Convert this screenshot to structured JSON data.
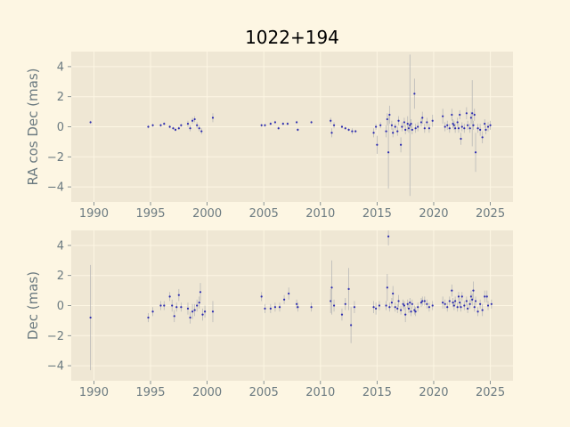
{
  "figure": {
    "title": "1022+194",
    "background": "#fdf6e3",
    "panel_background": "#efe7d4",
    "grid_color": "#fdf6e3",
    "tick_color": "#6b7a80",
    "label_color": "#6b7a80",
    "point_color": "#2b2bb0",
    "errorbar_color": "#b8b8b8"
  },
  "chart_data": [
    {
      "type": "scatter",
      "ylabel": "RA cos Dec (mas)",
      "xlim": [
        1988,
        2027
      ],
      "ylim": [
        -5,
        5
      ],
      "xticks": [
        1990,
        1995,
        2000,
        2005,
        2010,
        2015,
        2020,
        2025
      ],
      "yticks": [
        -4,
        -2,
        0,
        2,
        4
      ],
      "grid": true,
      "points": [
        [
          1989.7,
          0.3,
          0.1
        ],
        [
          1994.8,
          0.0,
          0.1
        ],
        [
          1995.2,
          0.1,
          0.1
        ],
        [
          1995.9,
          0.1,
          0.1
        ],
        [
          1996.2,
          0.2,
          0.1
        ],
        [
          1996.7,
          0.0,
          0.1
        ],
        [
          1997.0,
          -0.1,
          0.1
        ],
        [
          1997.2,
          -0.2,
          0.1
        ],
        [
          1997.5,
          -0.1,
          0.1
        ],
        [
          1997.7,
          0.1,
          0.1
        ],
        [
          1998.3,
          0.2,
          0.2
        ],
        [
          1998.5,
          -0.1,
          0.2
        ],
        [
          1998.7,
          0.4,
          0.2
        ],
        [
          1998.9,
          0.5,
          0.2
        ],
        [
          1999.1,
          0.1,
          0.2
        ],
        [
          1999.3,
          -0.1,
          0.2
        ],
        [
          1999.5,
          -0.3,
          0.2
        ],
        [
          2000.5,
          0.6,
          0.3
        ],
        [
          2004.8,
          0.1,
          0.1
        ],
        [
          2005.1,
          0.1,
          0.1
        ],
        [
          2005.6,
          0.2,
          0.1
        ],
        [
          2006.0,
          0.3,
          0.1
        ],
        [
          2006.3,
          -0.1,
          0.1
        ],
        [
          2006.7,
          0.2,
          0.1
        ],
        [
          2007.1,
          0.2,
          0.1
        ],
        [
          2007.9,
          0.3,
          0.1
        ],
        [
          2008.0,
          -0.2,
          0.1
        ],
        [
          2009.2,
          0.3,
          0.1
        ],
        [
          2010.9,
          0.4,
          0.2
        ],
        [
          2011.0,
          -0.4,
          0.3
        ],
        [
          2011.2,
          0.1,
          0.2
        ],
        [
          2011.9,
          0.0,
          0.1
        ],
        [
          2012.2,
          -0.1,
          0.1
        ],
        [
          2012.5,
          -0.2,
          0.1
        ],
        [
          2012.8,
          -0.3,
          0.2
        ],
        [
          2013.1,
          -0.3,
          0.1
        ],
        [
          2014.7,
          -0.4,
          0.3
        ],
        [
          2014.9,
          0.0,
          0.2
        ],
        [
          2015.0,
          -1.2,
          0.6
        ],
        [
          2015.3,
          0.1,
          0.2
        ],
        [
          2015.8,
          -0.3,
          0.4
        ],
        [
          2015.9,
          0.5,
          0.4
        ],
        [
          2016.0,
          -1.7,
          2.4
        ],
        [
          2016.1,
          0.8,
          0.6
        ],
        [
          2016.3,
          0.1,
          0.3
        ],
        [
          2016.4,
          -0.4,
          0.3
        ],
        [
          2016.6,
          0.0,
          0.2
        ],
        [
          2016.8,
          -0.3,
          0.3
        ],
        [
          2016.9,
          0.4,
          0.3
        ],
        [
          2017.1,
          -1.2,
          0.5
        ],
        [
          2017.2,
          0.0,
          0.3
        ],
        [
          2017.4,
          0.3,
          0.3
        ],
        [
          2017.5,
          -0.2,
          0.3
        ],
        [
          2017.7,
          0.2,
          0.5
        ],
        [
          2017.8,
          -0.1,
          0.3
        ],
        [
          2017.9,
          0.1,
          4.7
        ],
        [
          2018.0,
          0.2,
          0.3
        ],
        [
          2018.1,
          -0.2,
          0.3
        ],
        [
          2018.3,
          2.2,
          1.0
        ],
        [
          2018.4,
          -0.1,
          0.3
        ],
        [
          2018.6,
          0.0,
          0.3
        ],
        [
          2018.9,
          0.3,
          0.3
        ],
        [
          2019.0,
          0.6,
          0.4
        ],
        [
          2019.2,
          -0.1,
          0.3
        ],
        [
          2019.4,
          0.3,
          0.3
        ],
        [
          2019.6,
          -0.1,
          0.3
        ],
        [
          2019.9,
          0.4,
          0.4
        ],
        [
          2020.8,
          0.7,
          0.5
        ],
        [
          2021.0,
          0.0,
          0.3
        ],
        [
          2021.2,
          0.1,
          0.3
        ],
        [
          2021.4,
          -0.1,
          0.3
        ],
        [
          2021.6,
          0.8,
          0.4
        ],
        [
          2021.7,
          0.2,
          0.3
        ],
        [
          2021.8,
          0.1,
          0.3
        ],
        [
          2021.9,
          -0.1,
          0.3
        ],
        [
          2022.1,
          0.3,
          0.3
        ],
        [
          2022.2,
          -0.1,
          0.3
        ],
        [
          2022.3,
          0.8,
          0.3
        ],
        [
          2022.4,
          -0.8,
          0.4
        ],
        [
          2022.5,
          0.0,
          0.3
        ],
        [
          2022.7,
          -0.1,
          0.3
        ],
        [
          2022.9,
          0.9,
          0.4
        ],
        [
          2023.0,
          0.1,
          0.3
        ],
        [
          2023.2,
          -0.1,
          0.3
        ],
        [
          2023.3,
          0.6,
          0.4
        ],
        [
          2023.4,
          0.9,
          2.2
        ],
        [
          2023.5,
          0.1,
          0.3
        ],
        [
          2023.6,
          0.8,
          0.4
        ],
        [
          2023.7,
          -1.7,
          1.3
        ],
        [
          2023.9,
          -0.1,
          0.3
        ],
        [
          2024.1,
          -0.2,
          0.4
        ],
        [
          2024.3,
          -0.7,
          0.4
        ],
        [
          2024.5,
          0.2,
          0.3
        ],
        [
          2024.6,
          -0.2,
          0.3
        ],
        [
          2024.8,
          0.0,
          0.3
        ],
        [
          2025.0,
          0.1,
          0.3
        ]
      ]
    },
    {
      "type": "scatter",
      "ylabel": "Dec (mas)",
      "xlim": [
        1988,
        2027
      ],
      "ylim": [
        -5,
        5
      ],
      "xticks": [
        1990,
        1995,
        2000,
        2005,
        2010,
        2015,
        2020,
        2025
      ],
      "yticks": [
        -4,
        -2,
        0,
        2,
        4
      ],
      "grid": true,
      "points": [
        [
          1989.7,
          -0.8,
          3.5
        ],
        [
          1994.8,
          -0.8,
          0.3
        ],
        [
          1995.2,
          -0.4,
          0.3
        ],
        [
          1995.9,
          0.0,
          0.3
        ],
        [
          1996.2,
          0.0,
          0.3
        ],
        [
          1996.7,
          0.6,
          0.3
        ],
        [
          1996.9,
          0.0,
          0.4
        ],
        [
          1997.1,
          -0.7,
          0.4
        ],
        [
          1997.3,
          -0.1,
          0.3
        ],
        [
          1997.5,
          0.7,
          0.4
        ],
        [
          1997.7,
          -0.1,
          0.3
        ],
        [
          1998.3,
          -0.2,
          0.4
        ],
        [
          1998.5,
          -0.8,
          0.4
        ],
        [
          1998.7,
          -0.4,
          0.5
        ],
        [
          1998.9,
          -0.3,
          0.4
        ],
        [
          1999.1,
          0.0,
          0.4
        ],
        [
          1999.3,
          0.2,
          0.4
        ],
        [
          1999.4,
          0.9,
          0.6
        ],
        [
          1999.6,
          -0.6,
          0.4
        ],
        [
          1999.8,
          -0.4,
          0.4
        ],
        [
          2000.5,
          -0.4,
          0.7
        ],
        [
          2004.8,
          0.6,
          0.3
        ],
        [
          2005.1,
          -0.2,
          0.3
        ],
        [
          2005.6,
          -0.2,
          0.3
        ],
        [
          2006.0,
          -0.1,
          0.3
        ],
        [
          2006.4,
          -0.1,
          0.3
        ],
        [
          2006.8,
          0.4,
          0.3
        ],
        [
          2007.2,
          0.8,
          0.4
        ],
        [
          2007.9,
          0.1,
          0.3
        ],
        [
          2008.0,
          -0.1,
          0.3
        ],
        [
          2009.2,
          -0.1,
          0.3
        ],
        [
          2010.9,
          0.3,
          0.8
        ],
        [
          2011.0,
          1.2,
          1.8
        ],
        [
          2011.2,
          0.0,
          0.4
        ],
        [
          2011.9,
          -0.6,
          0.4
        ],
        [
          2012.2,
          0.1,
          0.4
        ],
        [
          2012.5,
          1.1,
          1.4
        ],
        [
          2012.7,
          -1.3,
          1.2
        ],
        [
          2013.0,
          -0.1,
          0.4
        ],
        [
          2014.7,
          -0.1,
          0.4
        ],
        [
          2014.9,
          -0.2,
          0.4
        ],
        [
          2015.2,
          0.0,
          0.3
        ],
        [
          2015.8,
          0.0,
          0.3
        ],
        [
          2015.9,
          1.2,
          0.9
        ],
        [
          2016.0,
          4.6,
          0.6
        ],
        [
          2016.1,
          -0.1,
          0.3
        ],
        [
          2016.3,
          0.2,
          0.3
        ],
        [
          2016.4,
          0.8,
          0.5
        ],
        [
          2016.6,
          -0.1,
          0.3
        ],
        [
          2016.8,
          -0.2,
          0.3
        ],
        [
          2016.9,
          0.3,
          0.4
        ],
        [
          2017.1,
          -0.3,
          0.3
        ],
        [
          2017.3,
          0.1,
          0.3
        ],
        [
          2017.4,
          0.0,
          0.3
        ],
        [
          2017.5,
          -0.6,
          0.5
        ],
        [
          2017.7,
          0.1,
          0.3
        ],
        [
          2017.8,
          -0.2,
          0.3
        ],
        [
          2017.9,
          0.2,
          0.3
        ],
        [
          2018.0,
          -0.4,
          0.3
        ],
        [
          2018.1,
          0.1,
          0.3
        ],
        [
          2018.3,
          -0.3,
          0.3
        ],
        [
          2018.4,
          -0.4,
          0.3
        ],
        [
          2018.6,
          -0.1,
          0.3
        ],
        [
          2018.9,
          0.2,
          0.3
        ],
        [
          2019.0,
          0.3,
          0.3
        ],
        [
          2019.2,
          0.3,
          0.3
        ],
        [
          2019.4,
          0.1,
          0.3
        ],
        [
          2019.6,
          -0.1,
          0.3
        ],
        [
          2019.9,
          0.0,
          0.3
        ],
        [
          2020.8,
          0.2,
          0.4
        ],
        [
          2021.0,
          0.1,
          0.3
        ],
        [
          2021.2,
          -0.1,
          0.3
        ],
        [
          2021.4,
          0.3,
          0.3
        ],
        [
          2021.6,
          1.0,
          0.4
        ],
        [
          2021.7,
          0.2,
          0.3
        ],
        [
          2021.8,
          0.0,
          0.3
        ],
        [
          2021.9,
          0.3,
          0.3
        ],
        [
          2022.1,
          -0.1,
          0.3
        ],
        [
          2022.2,
          0.6,
          0.3
        ],
        [
          2022.3,
          0.2,
          0.3
        ],
        [
          2022.4,
          -0.1,
          0.3
        ],
        [
          2022.5,
          0.6,
          0.3
        ],
        [
          2022.7,
          0.0,
          0.3
        ],
        [
          2022.9,
          0.3,
          0.3
        ],
        [
          2023.0,
          -0.2,
          0.3
        ],
        [
          2023.2,
          0.1,
          0.3
        ],
        [
          2023.3,
          0.6,
          0.4
        ],
        [
          2023.4,
          0.4,
          0.4
        ],
        [
          2023.5,
          1.0,
          0.6
        ],
        [
          2023.6,
          -0.1,
          0.3
        ],
        [
          2023.7,
          0.3,
          0.3
        ],
        [
          2023.9,
          -0.4,
          0.3
        ],
        [
          2024.1,
          0.1,
          0.3
        ],
        [
          2024.3,
          -0.3,
          0.4
        ],
        [
          2024.5,
          0.6,
          0.4
        ],
        [
          2024.7,
          0.6,
          0.4
        ],
        [
          2024.8,
          0.0,
          0.3
        ],
        [
          2025.1,
          0.1,
          0.3
        ]
      ]
    }
  ]
}
